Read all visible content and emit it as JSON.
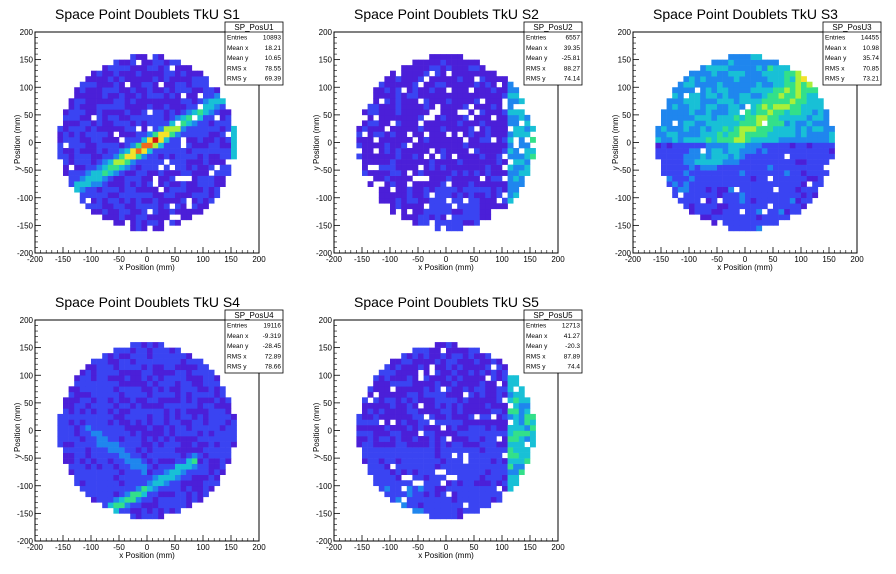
{
  "chart_data": [
    {
      "type": "heatmap",
      "title": "Space Point Doublets TkU S1",
      "xlabel": "x Position (mm)",
      "ylabel": "y Position (mm)",
      "xlim": [
        -200,
        200
      ],
      "ylim": [
        -200,
        200
      ],
      "xticks": [
        -200,
        -150,
        -100,
        -50,
        0,
        50,
        100,
        150,
        200
      ],
      "yticks": [
        -200,
        -150,
        -100,
        -50,
        0,
        50,
        100,
        150,
        200
      ],
      "stats_title": "SP_PosU1",
      "stats": [
        {
          "label": "Entries",
          "value": "10893"
        },
        {
          "label": "Mean x",
          "value": "18.21"
        },
        {
          "label": "Mean y",
          "value": "10.65"
        },
        {
          "label": "RMS x",
          "value": "78.55"
        },
        {
          "label": "RMS y",
          "value": "69.39"
        }
      ],
      "pattern": "diagonal band y≈0.6x hot near (0,5); vertical band x≈160"
    },
    {
      "type": "heatmap",
      "title": "Space Point Doublets TkU S2",
      "xlabel": "x Position (mm)",
      "ylabel": "y Position (mm)",
      "xlim": [
        -200,
        200
      ],
      "ylim": [
        -200,
        200
      ],
      "xticks": [
        -200,
        -150,
        -100,
        -50,
        0,
        50,
        100,
        150,
        200
      ],
      "yticks": [
        -200,
        -150,
        -100,
        -50,
        0,
        50,
        100,
        150,
        200
      ],
      "stats_title": "SP_PosU2",
      "stats": [
        {
          "label": "Entries",
          "value": "6557"
        },
        {
          "label": "Mean x",
          "value": "39.35"
        },
        {
          "label": "Mean y",
          "value": "-25.81"
        },
        {
          "label": "RMS x",
          "value": "88.27"
        },
        {
          "label": "RMS y",
          "value": "74.14"
        }
      ],
      "pattern": "sparse uniform; vertical band x≈110-160"
    },
    {
      "type": "heatmap",
      "title": "Space Point Doublets TkU S3",
      "xlabel": "x Position (mm)",
      "ylabel": "y Position (mm)",
      "xlim": [
        -200,
        200
      ],
      "ylim": [
        -200,
        200
      ],
      "xticks": [
        -200,
        -150,
        -100,
        -50,
        0,
        50,
        100,
        150,
        200
      ],
      "yticks": [
        -200,
        -150,
        -100,
        -50,
        0,
        50,
        100,
        150,
        200
      ],
      "stats_title": "SP_PosU3",
      "stats": [
        {
          "label": "Entries",
          "value": "14455"
        },
        {
          "label": "Mean x",
          "value": "10.98"
        },
        {
          "label": "Mean y",
          "value": "35.74"
        },
        {
          "label": "RMS x",
          "value": "70.85"
        },
        {
          "label": "RMS y",
          "value": "73.21"
        }
      ],
      "pattern": "upper half enhanced; broad diagonal band"
    },
    {
      "type": "heatmap",
      "title": "Space Point Doublets TkU S4",
      "xlabel": "x Position (mm)",
      "ylabel": "y Position (mm)",
      "xlim": [
        -200,
        200
      ],
      "ylim": [
        -200,
        200
      ],
      "xticks": [
        -200,
        -150,
        -100,
        -50,
        0,
        50,
        100,
        150,
        200
      ],
      "yticks": [
        -200,
        -150,
        -100,
        -50,
        0,
        50,
        100,
        150,
        200
      ],
      "stats_title": "SP_PosU4",
      "stats": [
        {
          "label": "Entries",
          "value": "19116"
        },
        {
          "label": "Mean x",
          "value": "-9.319"
        },
        {
          "label": "Mean y",
          "value": "-28.45"
        },
        {
          "label": "RMS x",
          "value": "72.89"
        },
        {
          "label": "RMS y",
          "value": "78.66"
        }
      ],
      "pattern": "diagonal band from (-60,-140) to (80,-60); faint band from (-100,0) to (-20,-60)"
    },
    {
      "type": "heatmap",
      "title": "Space Point Doublets TkU S5",
      "xlabel": "x Position (mm)",
      "ylabel": "y Position (mm)",
      "xlim": [
        -200,
        200
      ],
      "ylim": [
        -200,
        200
      ],
      "xticks": [
        -200,
        -150,
        -100,
        -50,
        0,
        50,
        100,
        150,
        200
      ],
      "yticks": [
        -200,
        -150,
        -100,
        -50,
        0,
        50,
        100,
        150,
        200
      ],
      "stats_title": "SP_PosU5",
      "stats": [
        {
          "label": "Entries",
          "value": "12713"
        },
        {
          "label": "Mean x",
          "value": "41.27"
        },
        {
          "label": "Mean y",
          "value": "-20.3"
        },
        {
          "label": "RMS x",
          "value": "87.89"
        },
        {
          "label": "RMS y",
          "value": "74.4"
        }
      ],
      "pattern": "vertical band x≈110-170; lower region enhanced"
    }
  ],
  "palette": [
    "#ffffff",
    "#4b1fd8",
    "#3a44f2",
    "#1f86ee",
    "#18c0d6",
    "#33e08a",
    "#aaf03a",
    "#f2e22a",
    "#f06a1e",
    "#d41414"
  ]
}
